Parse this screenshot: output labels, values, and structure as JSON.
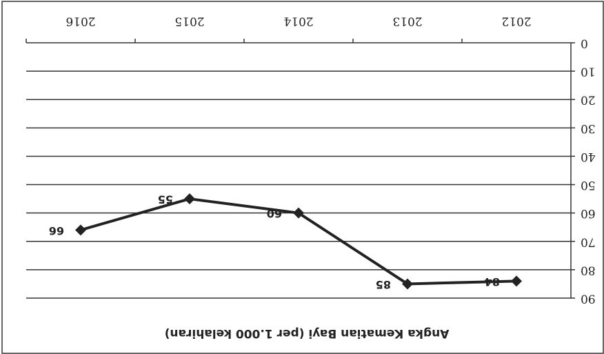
{
  "chart_data": {
    "type": "line",
    "title": "Angka Kematian Bayi (per 1.000 kelahiran)",
    "categories": [
      "2012",
      "2013",
      "2014",
      "2015",
      "2016"
    ],
    "values": [
      84,
      85,
      60,
      55,
      66
    ],
    "color": "#222222",
    "ylim": [
      0,
      90
    ],
    "yticks": [
      0,
      10,
      20,
      30,
      40,
      50,
      60,
      70,
      80,
      90
    ],
    "grid": true
  }
}
